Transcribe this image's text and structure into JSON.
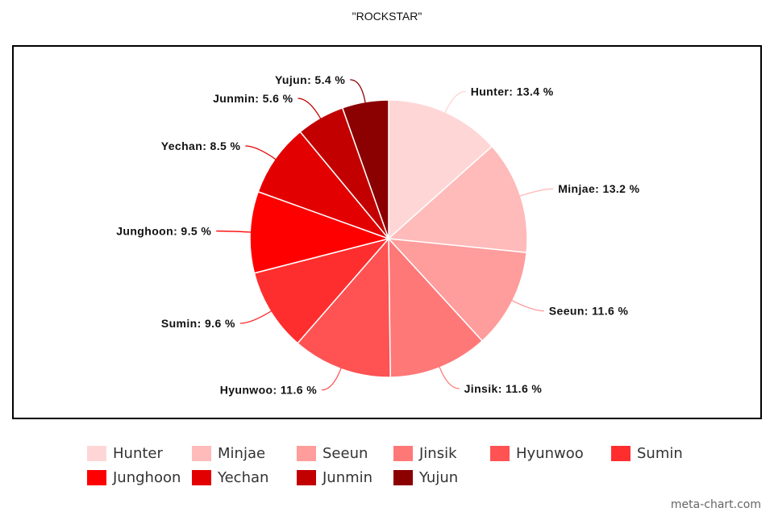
{
  "chart_data": {
    "type": "pie",
    "title": "\"ROCKSTAR\"",
    "legend_position": "bottom",
    "slices": [
      {
        "label": "Hunter",
        "value": 13.4,
        "display": "Hunter: 13.4 %",
        "color": "#ffd6d6"
      },
      {
        "label": "Minjae",
        "value": 13.2,
        "display": "Minjae: 13.2 %",
        "color": "#ffbaba"
      },
      {
        "label": "Seeun",
        "value": 11.6,
        "display": "Seeun: 11.6 %",
        "color": "#ff9c9c"
      },
      {
        "label": "Jinsik",
        "value": 11.6,
        "display": "Jinsik: 11.6 %",
        "color": "#ff7878"
      },
      {
        "label": "Hyunwoo",
        "value": 11.6,
        "display": "Hyunwoo: 11.6 %",
        "color": "#ff5252"
      },
      {
        "label": "Sumin",
        "value": 9.6,
        "display": "Sumin: 9.6 %",
        "color": "#ff2e2e"
      },
      {
        "label": "Junghoon",
        "value": 9.5,
        "display": "Junghoon: 9.5 %",
        "color": "#ff0000"
      },
      {
        "label": "Yechan",
        "value": 8.5,
        "display": "Yechan: 8.5 %",
        "color": "#e30000"
      },
      {
        "label": "Junmin",
        "value": 5.6,
        "display": "Junmin: 5.6 %",
        "color": "#c20000"
      },
      {
        "label": "Yujun",
        "value": 5.4,
        "display": "Yujun: 5.4 %",
        "color": "#8b0000"
      }
    ]
  },
  "watermark": "meta-chart.com"
}
